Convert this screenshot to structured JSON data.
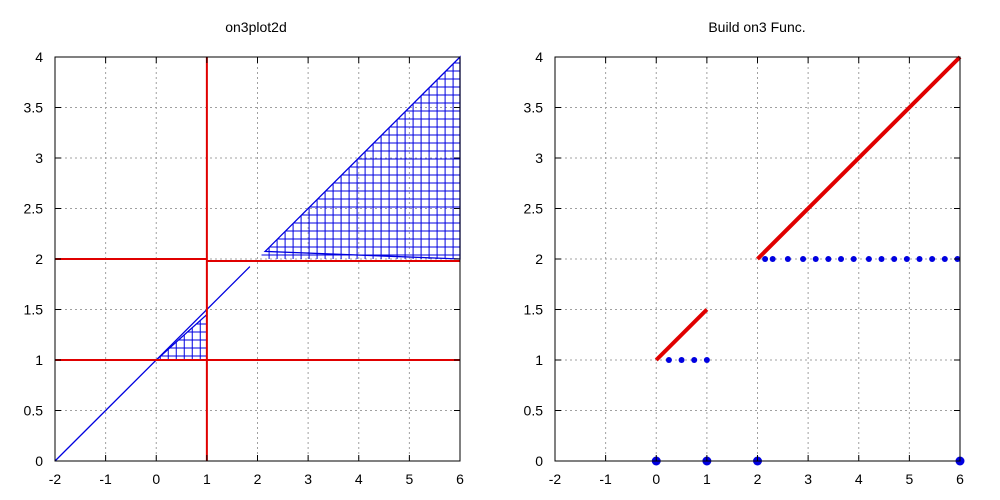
{
  "chart_data": [
    {
      "type": "line",
      "title": "on3plot2d",
      "xlim": [
        -2,
        6
      ],
      "ylim": [
        0,
        4
      ],
      "x_ticks": [
        "-2",
        "-1",
        "0",
        "1",
        "2",
        "3",
        "4",
        "5",
        "6"
      ],
      "y_ticks": [
        "0",
        "0.5",
        "1",
        "1.5",
        "2",
        "2.5",
        "3",
        "3.5",
        "4"
      ],
      "grid": true,
      "colors": {
        "blue": "#0000e0",
        "red": "#e00000"
      },
      "series": [
        {
          "kind": "line",
          "color": "blue",
          "x": [
            -2,
            1.85
          ],
          "y": [
            0,
            1.925
          ]
        },
        {
          "kind": "hatched-triangle",
          "color": "blue",
          "x": [
            0,
            1,
            1
          ],
          "y": [
            1,
            1.45,
            1
          ]
        },
        {
          "kind": "hatched-triangle",
          "color": "blue",
          "x": [
            2.15,
            6,
            6
          ],
          "y": [
            2.075,
            4,
            2
          ]
        },
        {
          "kind": "hline",
          "color": "red",
          "x": [
            -2,
            6
          ],
          "y": [
            1,
            1
          ]
        },
        {
          "kind": "hline",
          "color": "red",
          "x": [
            -2,
            1
          ],
          "y": [
            2,
            2
          ]
        },
        {
          "kind": "hline",
          "color": "red",
          "x": [
            1,
            6
          ],
          "y": [
            1.98,
            1.98
          ]
        },
        {
          "kind": "vline",
          "color": "red",
          "x": [
            1,
            1
          ],
          "y": [
            0,
            4
          ]
        }
      ]
    },
    {
      "type": "line",
      "title": "Build on3 Func.",
      "xlim": [
        -2,
        6
      ],
      "ylim": [
        0,
        4
      ],
      "x_ticks": [
        "-2",
        "-1",
        "0",
        "1",
        "2",
        "3",
        "4",
        "5",
        "6"
      ],
      "y_ticks": [
        "0",
        "0.5",
        "1",
        "1.5",
        "2",
        "2.5",
        "3",
        "3.5",
        "4"
      ],
      "grid": true,
      "colors": {
        "blue": "#0000e0",
        "red": "#e00000"
      },
      "series": [
        {
          "kind": "thick-line",
          "color": "red",
          "x": [
            0,
            1
          ],
          "y": [
            1,
            1.5
          ]
        },
        {
          "kind": "thick-line",
          "color": "red",
          "x": [
            2,
            6
          ],
          "y": [
            2,
            4
          ]
        },
        {
          "kind": "points",
          "color": "blue",
          "x": [
            0.25,
            0.5,
            0.75,
            1.0
          ],
          "y": [
            1,
            1,
            1,
            1
          ]
        },
        {
          "kind": "points",
          "color": "blue",
          "x": [
            2.15,
            2.3,
            2.6,
            2.9,
            3.15,
            3.4,
            3.65,
            3.9,
            4.2,
            4.45,
            4.7,
            4.95,
            5.2,
            5.45,
            5.7,
            5.95
          ],
          "y": [
            2,
            2,
            2,
            2,
            2,
            2,
            2,
            2,
            2,
            2,
            2,
            2,
            2,
            2,
            2,
            2
          ]
        },
        {
          "kind": "big-points",
          "color": "blue",
          "x": [
            0,
            1,
            2,
            6
          ],
          "y": [
            0,
            0,
            0,
            0
          ]
        }
      ]
    }
  ]
}
